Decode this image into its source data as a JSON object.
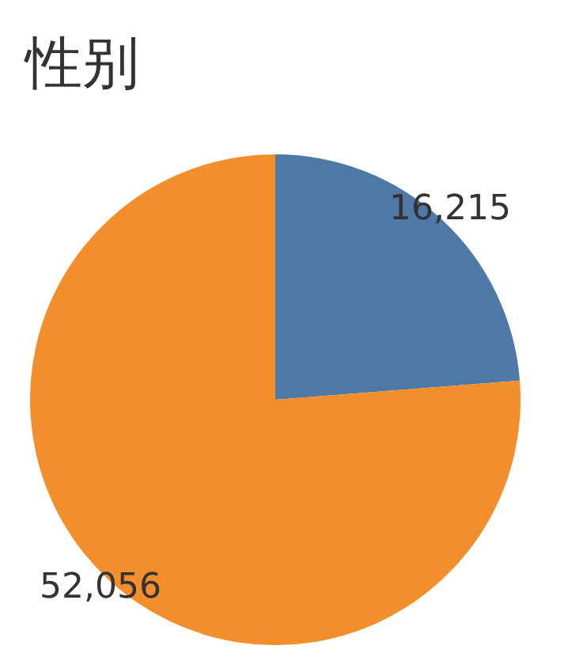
{
  "chart_data": {
    "type": "pie",
    "title": "性别",
    "categories": [
      null,
      null
    ],
    "values": [
      16215,
      52056
    ],
    "colors": [
      "#4e79a7",
      "#f28e2b"
    ],
    "value_labels": [
      "16,215",
      "52,056"
    ],
    "legend": false
  }
}
